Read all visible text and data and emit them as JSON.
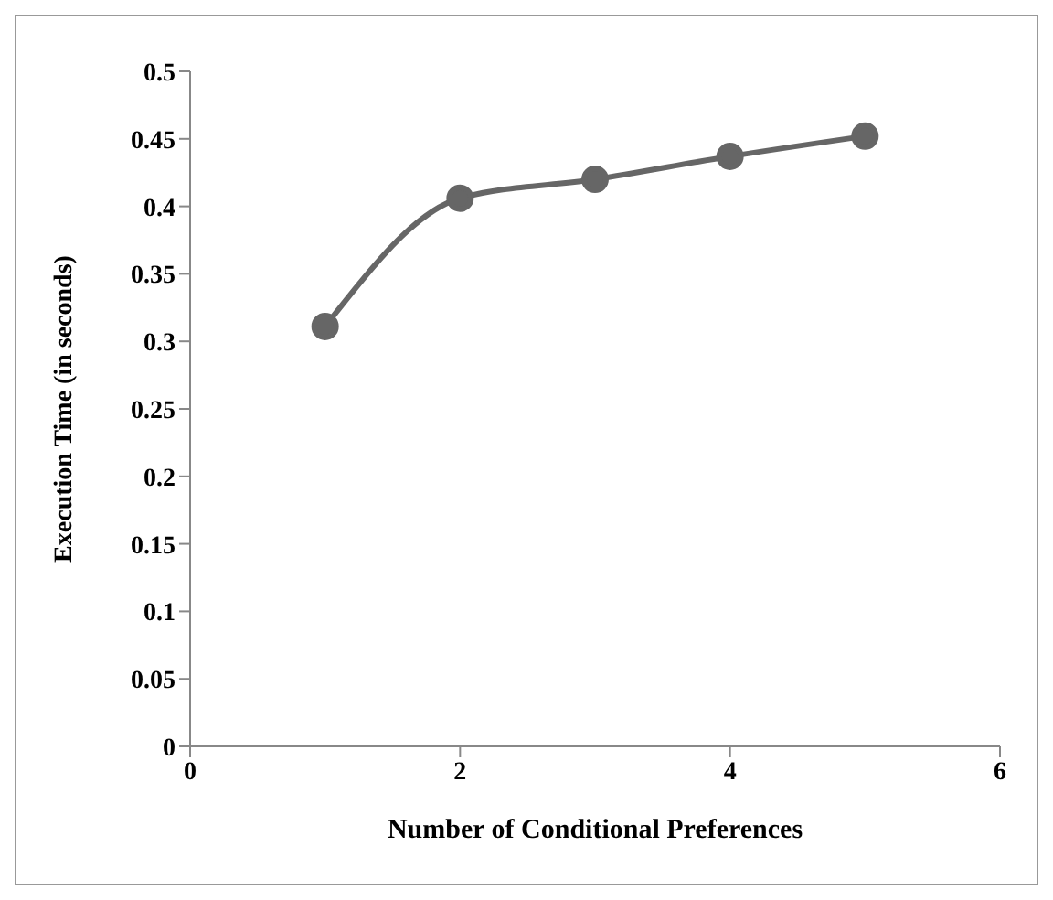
{
  "chart_data": {
    "type": "line",
    "xlabel": "Number of Conditional Preferences",
    "ylabel": "Execution Time (in seconds)",
    "x": [
      1,
      2,
      3,
      4,
      5
    ],
    "series": [
      {
        "color": "#666666",
        "values": [
          0.311,
          0.406,
          0.42,
          0.437,
          0.452
        ]
      }
    ],
    "xlim": [
      0,
      6
    ],
    "xticks": [
      0,
      2,
      4,
      6
    ],
    "ylim": [
      0,
      0.5
    ],
    "yticks": [
      0,
      0.05,
      0.1,
      0.15,
      0.2,
      0.25,
      0.3,
      0.35,
      0.4,
      0.45,
      0.5
    ],
    "marker": "circle",
    "line_style": "solid",
    "grid": false,
    "legend": false
  }
}
